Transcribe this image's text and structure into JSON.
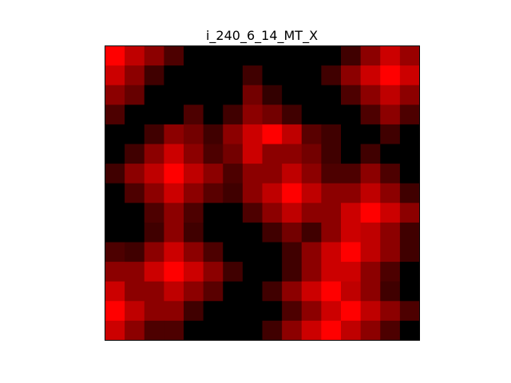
{
  "chart_data": {
    "type": "heatmap",
    "title": "i_240_6_14_MT_X",
    "xlabel": "",
    "ylabel": "",
    "axes_visible": false,
    "colormap": "black-to-red",
    "color_low": "#000000",
    "color_high": "#ff0000",
    "vmin": 0,
    "vmax": 1,
    "grid": false,
    "rows": 15,
    "cols": 16,
    "values": [
      [
        1.0,
        0.75,
        0.55,
        0.3,
        0,
        0,
        0,
        0,
        0,
        0,
        0,
        0,
        0.25,
        0.55,
        0.8,
        0.6
      ],
      [
        0.8,
        0.55,
        0.25,
        0,
        0,
        0,
        0,
        0.25,
        0,
        0,
        0,
        0.25,
        0.55,
        0.8,
        1.0,
        0.8
      ],
      [
        0.55,
        0.4,
        0,
        0,
        0,
        0,
        0,
        0.45,
        0.2,
        0,
        0,
        0,
        0.3,
        0.55,
        0.75,
        0.55
      ],
      [
        0.3,
        0,
        0,
        0,
        0.3,
        0,
        0.25,
        0.55,
        0.45,
        0.25,
        0,
        0,
        0,
        0.3,
        0.55,
        0.3
      ],
      [
        0,
        0,
        0.25,
        0.55,
        0.45,
        0.25,
        0.55,
        0.8,
        1.0,
        0.75,
        0.35,
        0.25,
        0,
        0,
        0.25,
        0
      ],
      [
        0,
        0.25,
        0.55,
        0.8,
        0.55,
        0.3,
        0.45,
        0.8,
        0.55,
        0.55,
        0.45,
        0.25,
        0,
        0.25,
        0,
        0
      ],
      [
        0.25,
        0.55,
        0.75,
        1.0,
        0.75,
        0.55,
        0.3,
        0.55,
        0.55,
        0.75,
        0.55,
        0.3,
        0.3,
        0.55,
        0.3,
        0
      ],
      [
        0,
        0.3,
        0.55,
        0.8,
        0.55,
        0.35,
        0.25,
        0.55,
        0.75,
        1.0,
        0.75,
        0.55,
        0.55,
        0.75,
        0.55,
        0.25
      ],
      [
        0,
        0,
        0.3,
        0.55,
        0.3,
        0,
        0,
        0.3,
        0.55,
        0.75,
        0.55,
        0.55,
        0.8,
        1.0,
        0.8,
        0.55
      ],
      [
        0,
        0,
        0.25,
        0.55,
        0.25,
        0,
        0,
        0,
        0.25,
        0.45,
        0.25,
        0.55,
        0.8,
        0.75,
        0.55,
        0.25
      ],
      [
        0.3,
        0.25,
        0.55,
        0.8,
        0.55,
        0.3,
        0,
        0,
        0,
        0.25,
        0.55,
        0.8,
        1.0,
        0.75,
        0.55,
        0.25
      ],
      [
        0.55,
        0.55,
        0.8,
        1.0,
        0.8,
        0.55,
        0.25,
        0,
        0,
        0.25,
        0.55,
        0.8,
        0.8,
        0.55,
        0.3,
        0
      ],
      [
        0.8,
        0.55,
        0.55,
        0.75,
        0.55,
        0.35,
        0,
        0,
        0.25,
        0.55,
        0.8,
        1.0,
        0.75,
        0.55,
        0.25,
        0
      ],
      [
        1.0,
        0.75,
        0.55,
        0.55,
        0.25,
        0,
        0,
        0,
        0,
        0.3,
        0.55,
        0.8,
        1.0,
        0.75,
        0.55,
        0.3
      ],
      [
        0.8,
        0.55,
        0.3,
        0.3,
        0,
        0,
        0,
        0,
        0.25,
        0.55,
        0.8,
        1.0,
        0.75,
        0.55,
        0.3,
        0
      ]
    ]
  }
}
